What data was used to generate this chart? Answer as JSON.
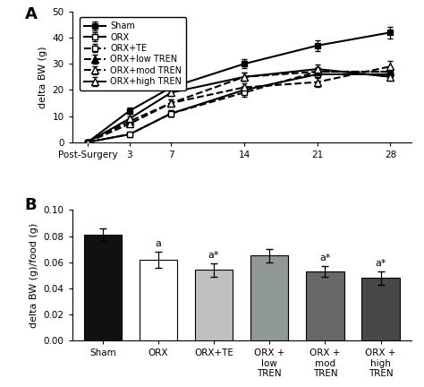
{
  "panel_A": {
    "x_values": [
      0,
      3,
      7,
      14,
      21,
      28
    ],
    "x_labels": [
      "Post-Surgery",
      "3",
      "7",
      "14",
      "21",
      "28"
    ],
    "series": [
      {
        "label": "Sham",
        "y": [
          0,
          12,
          21,
          30,
          37,
          42
        ],
        "yerr": [
          0,
          1.2,
          1.5,
          1.8,
          2.0,
          2.2
        ],
        "linestyle": "-",
        "marker": "s",
        "fillstyle": "full",
        "linewidth": 1.5
      },
      {
        "label": "ORX",
        "y": [
          0,
          3,
          11,
          20,
          26,
          26
        ],
        "yerr": [
          0,
          0.8,
          1.2,
          1.5,
          1.5,
          1.8
        ],
        "linestyle": "-",
        "marker": "s",
        "fillstyle": "none",
        "linewidth": 1.5
      },
      {
        "label": "ORX+TE",
        "y": [
          0,
          3,
          11,
          19,
          27,
          27
        ],
        "yerr": [
          0,
          0.8,
          1.2,
          1.5,
          1.5,
          1.8
        ],
        "linestyle": "--",
        "marker": "s",
        "fillstyle": "none",
        "linewidth": 1.5
      },
      {
        "label": "ORX+low TREN",
        "y": [
          0,
          8,
          15,
          25,
          27,
          27
        ],
        "yerr": [
          0,
          0.8,
          1.2,
          1.5,
          1.8,
          1.5
        ],
        "linestyle": "--",
        "marker": "^",
        "fillstyle": "full",
        "linewidth": 1.5
      },
      {
        "label": "ORX+mod TREN",
        "y": [
          0,
          7,
          15,
          21,
          23,
          29
        ],
        "yerr": [
          0,
          0.8,
          1.2,
          1.5,
          1.8,
          2.0
        ],
        "linestyle": "--",
        "marker": "^",
        "fillstyle": "none",
        "linewidth": 1.5
      },
      {
        "label": "ORX+high TREN",
        "y": [
          0,
          9,
          19,
          25,
          28,
          25
        ],
        "yerr": [
          0,
          0.8,
          1.2,
          1.5,
          1.8,
          1.5
        ],
        "linestyle": "-",
        "marker": "^",
        "fillstyle": "none",
        "linewidth": 1.5
      }
    ],
    "ylabel": "delta BW (g)",
    "ylim": [
      0,
      50
    ],
    "yticks": [
      0,
      10,
      20,
      30,
      40,
      50
    ]
  },
  "panel_B": {
    "categories": [
      "Sham",
      "ORX",
      "ORX+TE",
      "ORX +\nlow\nTREN",
      "ORX +\nmod\nTREN",
      "ORX +\nhigh\nTREN"
    ],
    "values": [
      0.081,
      0.062,
      0.054,
      0.065,
      0.053,
      0.048
    ],
    "yerr": [
      0.005,
      0.006,
      0.005,
      0.005,
      0.004,
      0.005
    ],
    "colors": [
      "#111111",
      "#ffffff",
      "#c0c0c0",
      "#909898",
      "#686868",
      "#484848"
    ],
    "annotations": [
      "",
      "a",
      "a*",
      "",
      "a*",
      "a*"
    ],
    "ylabel": "delta BW (g)/food (g)",
    "ylim": [
      0,
      0.1
    ],
    "yticks": [
      0.0,
      0.02,
      0.04,
      0.06,
      0.08,
      0.1
    ]
  }
}
